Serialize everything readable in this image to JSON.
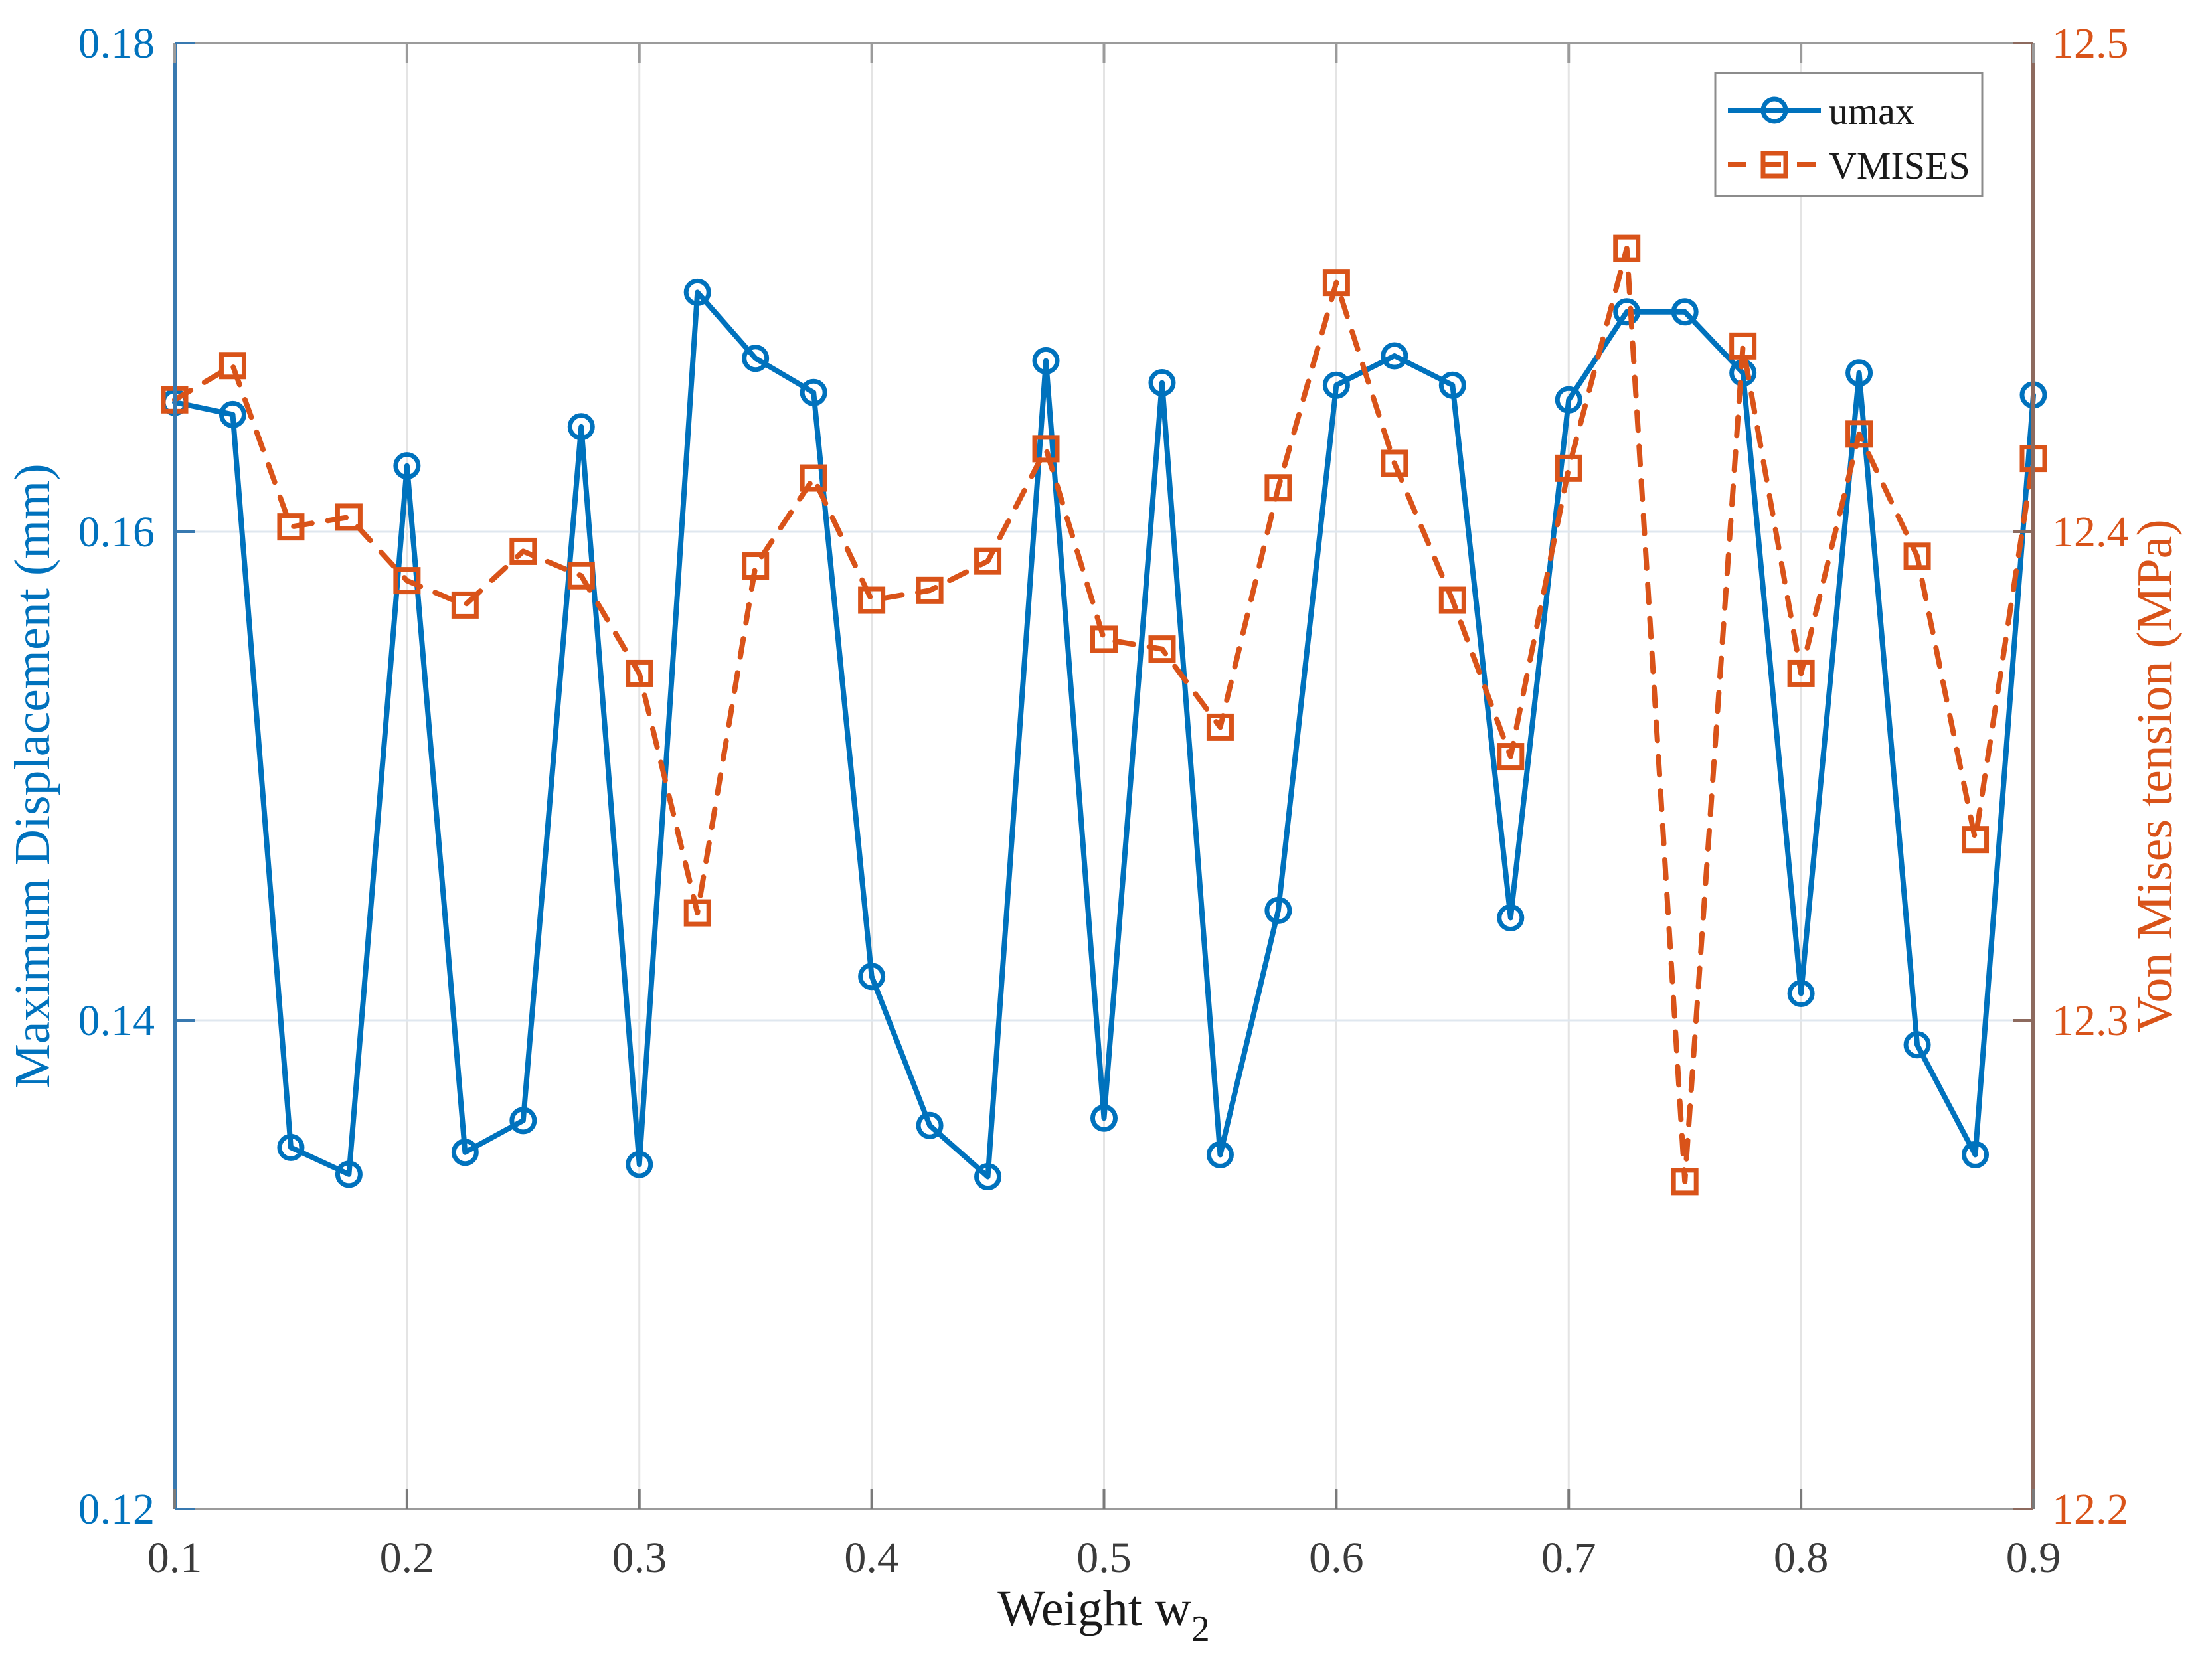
{
  "colors": {
    "umax_blue": "#0072BD",
    "vmises_orange": "#D95319",
    "left_spine": "#3879B0",
    "right_spine": "#8D6A5E",
    "top_bottom_spine": "#9B9B9B",
    "grid_horizontal": "#DFE7EF",
    "grid_vertical": "#E4E4E4",
    "x_tick_text": "#3B3B3B"
  },
  "chart_data": {
    "type": "line",
    "title": "",
    "xlabel_base": "Weight w",
    "xlabel_sub": "2",
    "xlim": [
      0.1,
      0.9
    ],
    "grid": true,
    "legend_position": "top-right",
    "x": [
      0.1,
      0.125,
      0.15,
      0.175,
      0.2,
      0.225,
      0.25,
      0.275,
      0.3,
      0.325,
      0.35,
      0.375,
      0.4,
      0.425,
      0.45,
      0.475,
      0.5,
      0.525,
      0.55,
      0.575,
      0.6,
      0.625,
      0.65,
      0.675,
      0.7,
      0.725,
      0.75,
      0.775,
      0.8,
      0.825,
      0.85,
      0.875,
      0.9
    ],
    "x_ticks": [
      0.1,
      0.2,
      0.3,
      0.4,
      0.5,
      0.6,
      0.7,
      0.8,
      0.9
    ],
    "x_tick_labels": [
      "0.1",
      "0.2",
      "0.3",
      "0.4",
      "0.5",
      "0.6",
      "0.7",
      "0.8",
      "0.9"
    ],
    "left_axis": {
      "label": "Maximum Displacement (mm)",
      "min": 0.12,
      "max": 0.18,
      "ticks": [
        0.12,
        0.14,
        0.16,
        0.18
      ],
      "tick_labels": [
        "0.12",
        "0.14",
        "0.16",
        "0.18"
      ]
    },
    "right_axis": {
      "label": "Von Mises tension (MPa)",
      "min": 12.2,
      "max": 12.5,
      "ticks": [
        12.2,
        12.3,
        12.4,
        12.5
      ],
      "tick_labels": [
        "12.2",
        "12.3",
        "12.4",
        "12.5"
      ]
    },
    "series": [
      {
        "name": "umax",
        "axis": "left",
        "color": "#0072BD",
        "style": "solid",
        "marker": "circle",
        "values": [
          0.1653,
          0.1648,
          0.1348,
          0.1337,
          0.1627,
          0.1346,
          0.1359,
          0.1643,
          0.1341,
          0.1698,
          0.1671,
          0.1657,
          0.1418,
          0.1357,
          0.1336,
          0.167,
          0.136,
          0.1661,
          0.1345,
          0.1445,
          0.166,
          0.1672,
          0.166,
          0.1442,
          0.1654,
          0.169,
          0.169,
          0.1665,
          0.1411,
          0.1665,
          0.139,
          0.1345,
          0.1656
        ]
      },
      {
        "name": "VMISES",
        "axis": "right",
        "color": "#D95319",
        "style": "dashed",
        "marker": "square",
        "values": [
          12.427,
          12.434,
          12.401,
          12.403,
          12.39,
          12.385,
          12.396,
          12.391,
          12.371,
          12.322,
          12.393,
          12.411,
          12.386,
          12.388,
          12.394,
          12.417,
          12.378,
          12.376,
          12.36,
          12.409,
          12.451,
          12.414,
          12.386,
          12.354,
          12.413,
          12.458,
          12.267,
          12.438,
          12.371,
          12.42,
          12.395,
          12.337,
          12.415
        ]
      }
    ]
  }
}
